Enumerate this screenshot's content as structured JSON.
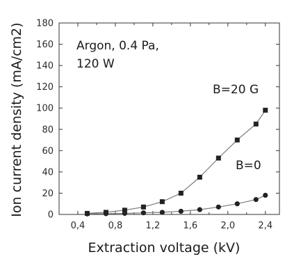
{
  "chart_data": {
    "type": "line",
    "xlabel": "Extraction voltage  (kV)",
    "ylabel": "Ion current density (mA/cm2)",
    "xlim": [
      0.2,
      2.55
    ],
    "ylim": [
      0,
      180
    ],
    "xticks": [
      0.4,
      0.6,
      0.8,
      1.0,
      1.2,
      1.4,
      1.6,
      1.8,
      2.0,
      2.2,
      2.4
    ],
    "xtick_labels": [
      "0,4",
      "",
      "0,8",
      "",
      "1,2",
      "",
      "1,6",
      "",
      "2,0",
      "",
      "2,4"
    ],
    "yticks": [
      0,
      20,
      40,
      60,
      80,
      100,
      120,
      140,
      160,
      180
    ],
    "ytick_labels": [
      "0",
      "20",
      "40",
      "60",
      "80",
      "100",
      "120",
      "140",
      "160",
      "180"
    ],
    "annotation": [
      "Argon, 0.4 Pa,",
      "120 W"
    ],
    "grid": false,
    "series": [
      {
        "name": "B=20 G",
        "marker": "square",
        "color": "#222222",
        "x": [
          0.5,
          0.7,
          0.9,
          1.1,
          1.3,
          1.5,
          1.7,
          1.9,
          2.1,
          2.3,
          2.4
        ],
        "y": [
          1,
          2,
          4,
          7,
          12,
          20,
          35,
          53,
          70,
          85,
          98
        ]
      },
      {
        "name": "B=0",
        "marker": "circle",
        "color": "#222222",
        "x": [
          0.5,
          0.7,
          0.9,
          1.1,
          1.3,
          1.5,
          1.7,
          1.9,
          2.1,
          2.3,
          2.4
        ],
        "y": [
          0.5,
          0.7,
          1,
          1.5,
          2,
          3,
          4.5,
          7,
          10,
          14,
          18
        ]
      }
    ]
  }
}
